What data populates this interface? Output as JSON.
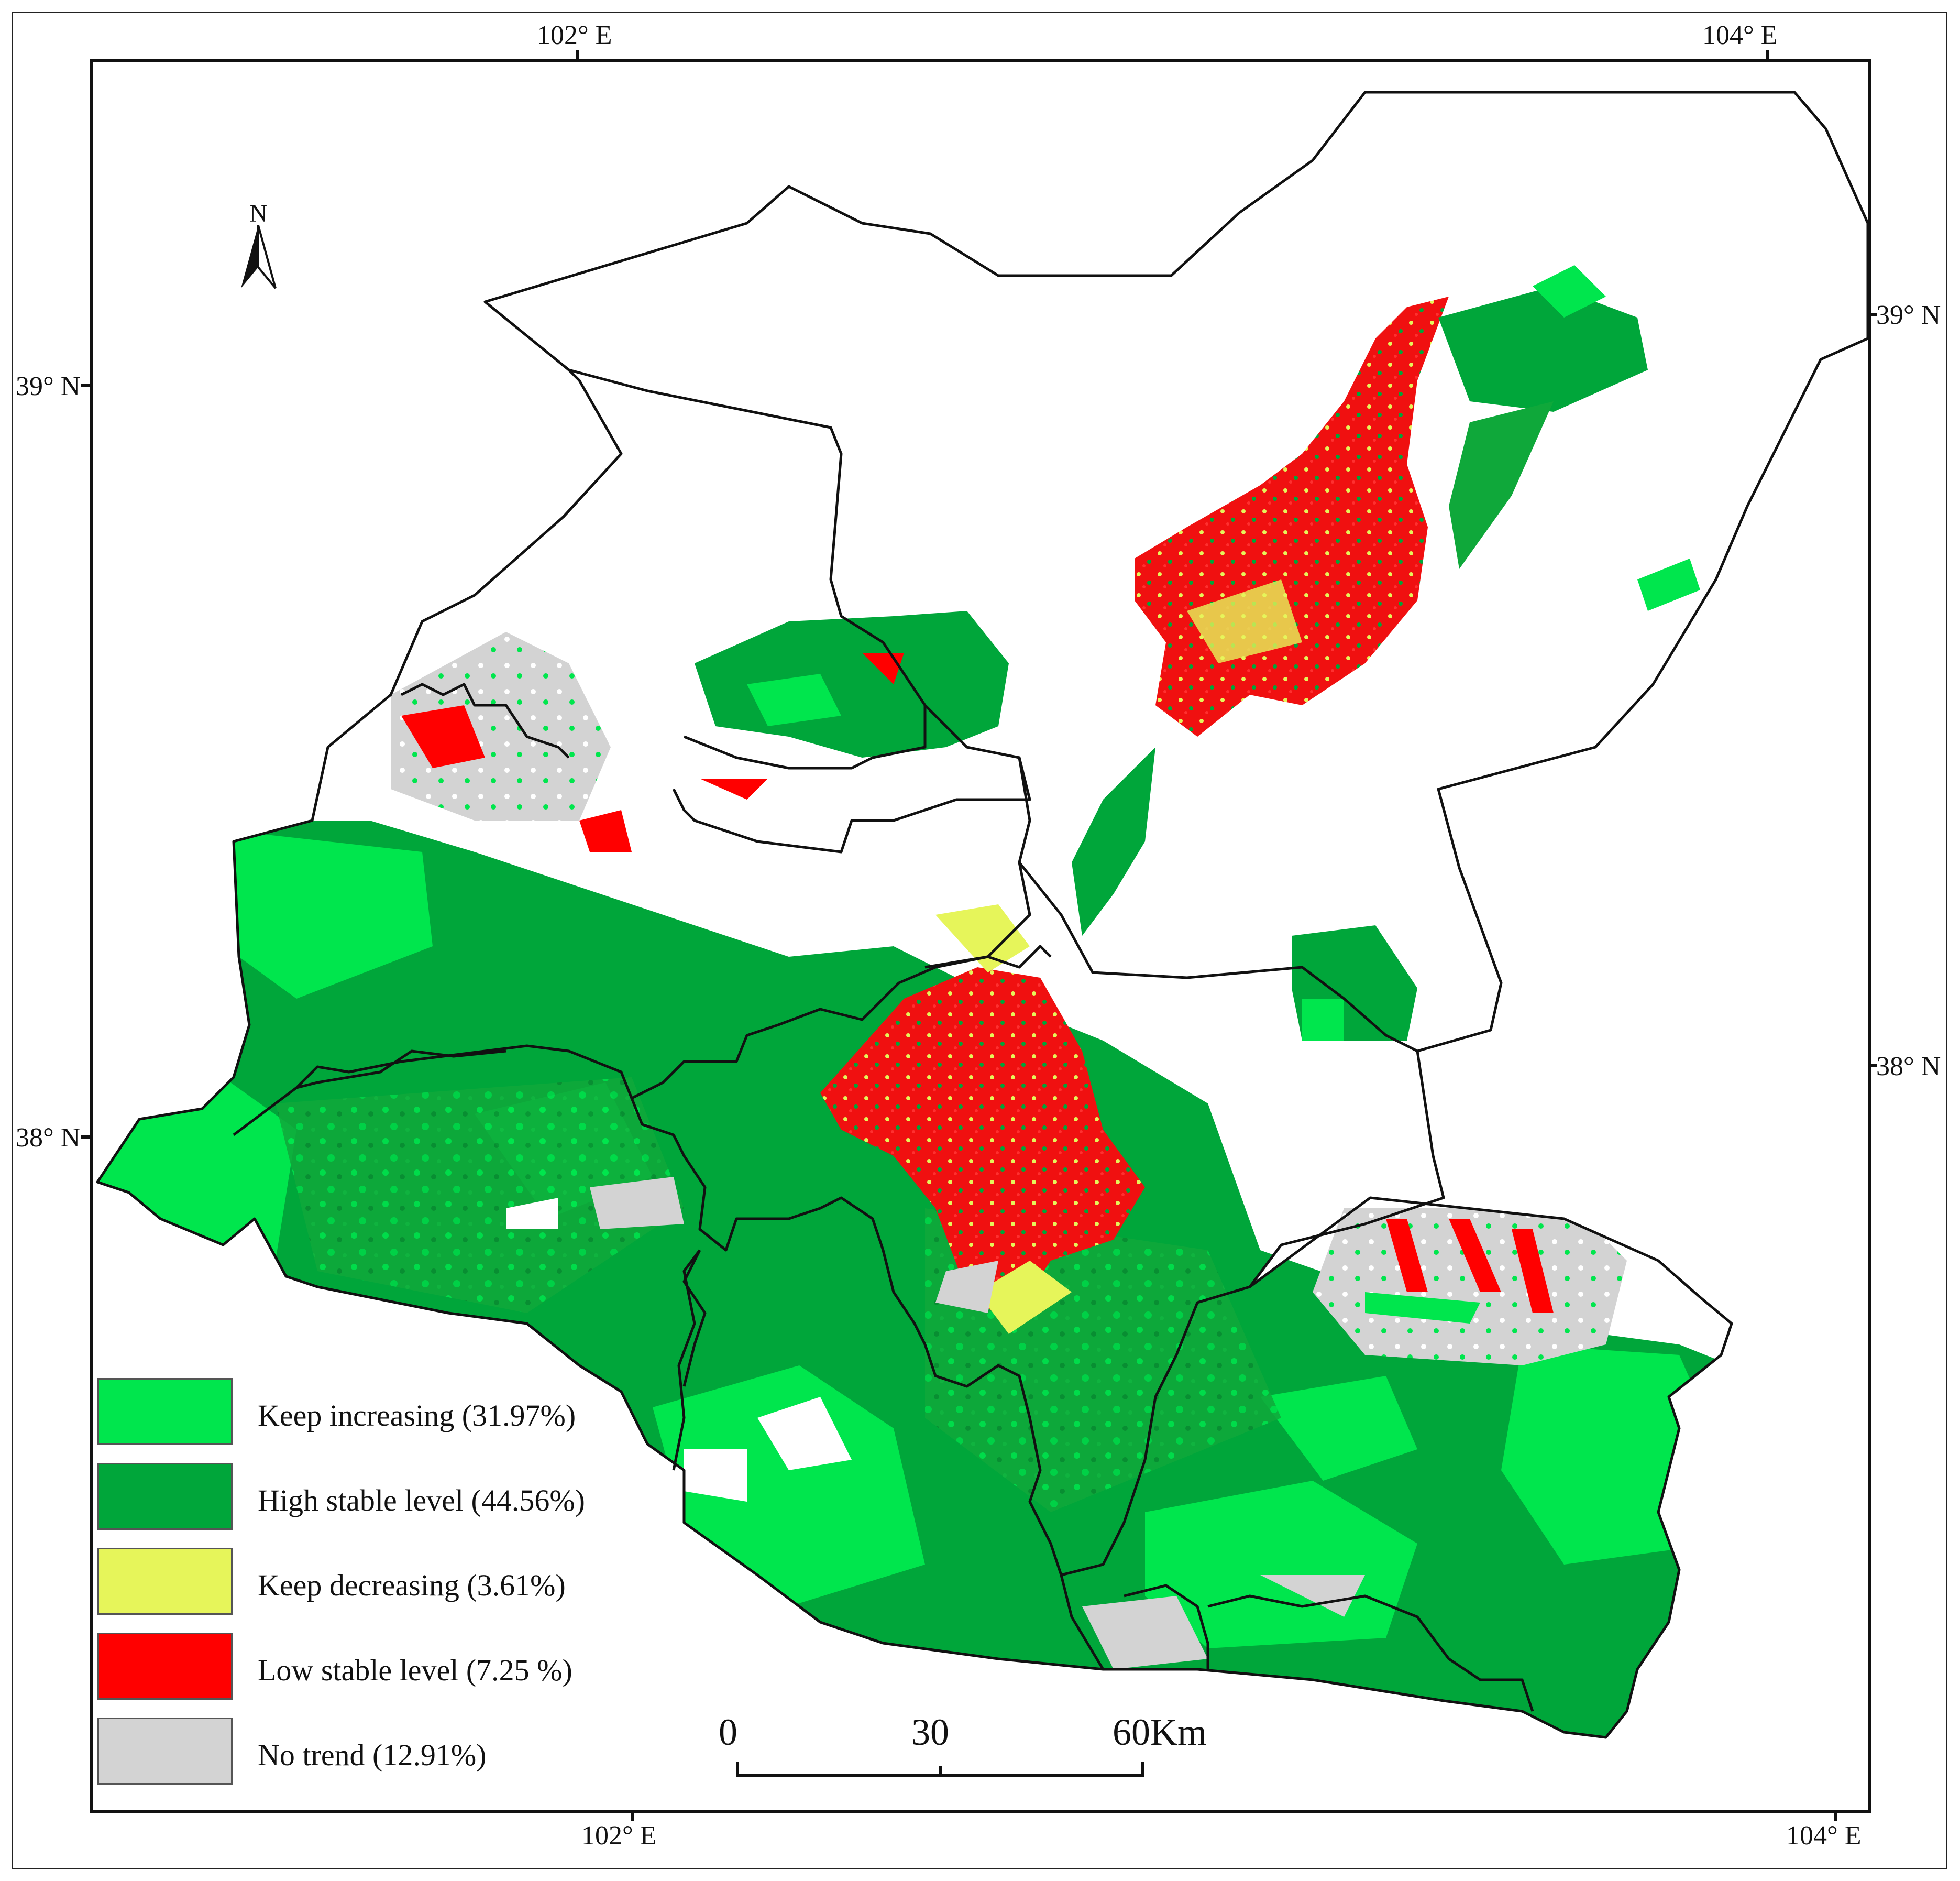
{
  "coordinates": {
    "top": [
      "102° E",
      "104° E"
    ],
    "bottom": [
      "102° E",
      "104° E"
    ],
    "left": [
      "39° N",
      "38° N"
    ],
    "right": [
      "39° N",
      "38° N"
    ]
  },
  "north_arrow": {
    "label": "N"
  },
  "scale_bar": {
    "labels": [
      "0",
      "30",
      "60Km"
    ]
  },
  "legend": [
    {
      "label": "Keep increasing (31.97%)",
      "color": "#00E64D",
      "percent": 31.97
    },
    {
      "label": "High stable level (44.56%)",
      "color": "#00A63A",
      "percent": 44.56
    },
    {
      "label": "Keep decreasing (3.61%)",
      "color": "#E6F55A",
      "percent": 3.61
    },
    {
      "label": "Low stable level (7.25 %)",
      "color": "#FF0000",
      "percent": 7.25
    },
    {
      "label": "No trend (12.91%)",
      "color": "#D3D3D3",
      "percent": 12.91
    }
  ],
  "colors": {
    "boundary": "#111111",
    "background": "#ffffff"
  }
}
